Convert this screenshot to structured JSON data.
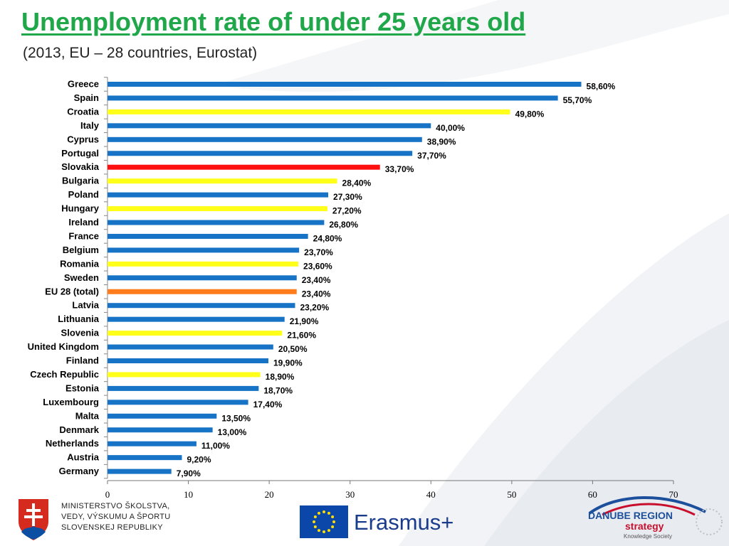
{
  "header": {
    "title": "Unemployment rate of under 25 years old",
    "subtitle": "(2013, EU – 28 countries, Eurostat)"
  },
  "colors": {
    "default": "#1673c6",
    "highlight": "#ffff1a",
    "slovakia": "#ff1010",
    "eu_total": "#ff7b1c",
    "title": "#1fa74a"
  },
  "chart_data": {
    "type": "bar",
    "orientation": "horizontal",
    "title": "Unemployment rate of under 25 years old",
    "xlim": [
      0,
      70
    ],
    "xticks": [
      0,
      10,
      20,
      30,
      40,
      50,
      60,
      70
    ],
    "categories": [
      "Greece",
      "Spain",
      "Croatia",
      "Italy",
      "Cyprus",
      "Portugal",
      "Slovakia",
      "Bulgaria",
      "Poland",
      "Hungary",
      "Ireland",
      "France",
      "Belgium",
      "Romania",
      "Sweden",
      "EU 28 (total)",
      "Latvia",
      "Lithuania",
      "Slovenia",
      "United Kingdom",
      "Finland",
      "Czech Republic",
      "Estonia",
      "Luxembourg",
      "Malta",
      "Denmark",
      "Netherlands",
      "Austria",
      "Germany"
    ],
    "values": [
      58.6,
      55.7,
      49.8,
      40.0,
      38.9,
      37.7,
      33.7,
      28.4,
      27.3,
      27.2,
      26.8,
      24.8,
      23.7,
      23.6,
      23.4,
      23.4,
      23.2,
      21.9,
      21.6,
      20.5,
      19.9,
      18.9,
      18.7,
      17.4,
      13.5,
      13.0,
      11.0,
      9.2,
      7.9
    ],
    "value_labels": [
      "58,60%",
      "55,70%",
      "49,80%",
      "40,00%",
      "38,90%",
      "37,70%",
      "33,70%",
      "28,40%",
      "27,30%",
      "27,20%",
      "26,80%",
      "24,80%",
      "23,70%",
      "23,60%",
      "23,40%",
      "23,40%",
      "23,20%",
      "21,90%",
      "21,60%",
      "20,50%",
      "19,90%",
      "18,90%",
      "18,70%",
      "17,40%",
      "13,50%",
      "13,00%",
      "11,00%",
      "9,20%",
      "7,90%"
    ],
    "bar_colors": [
      "#1673c6",
      "#1673c6",
      "#ffff1a",
      "#1673c6",
      "#1673c6",
      "#1673c6",
      "#ff1010",
      "#ffff1a",
      "#1673c6",
      "#ffff1a",
      "#1673c6",
      "#1673c6",
      "#1673c6",
      "#ffff1a",
      "#1673c6",
      "#ff7b1c",
      "#1673c6",
      "#1673c6",
      "#ffff1a",
      "#1673c6",
      "#1673c6",
      "#ffff1a",
      "#1673c6",
      "#1673c6",
      "#1673c6",
      "#1673c6",
      "#1673c6",
      "#1673c6",
      "#1673c6"
    ]
  },
  "footer": {
    "ministry_lines": [
      "MINISTERSTVO ŠKOLSTVA,",
      "VEDY, VÝSKUMU A ŠPORTU",
      "SLOVENSKEJ REPUBLIKY"
    ],
    "erasmus_label": "Erasmus+",
    "danube_line1": "DANUBE REGION",
    "danube_line2": "strategy",
    "danube_line3": "Knowledge Society"
  }
}
